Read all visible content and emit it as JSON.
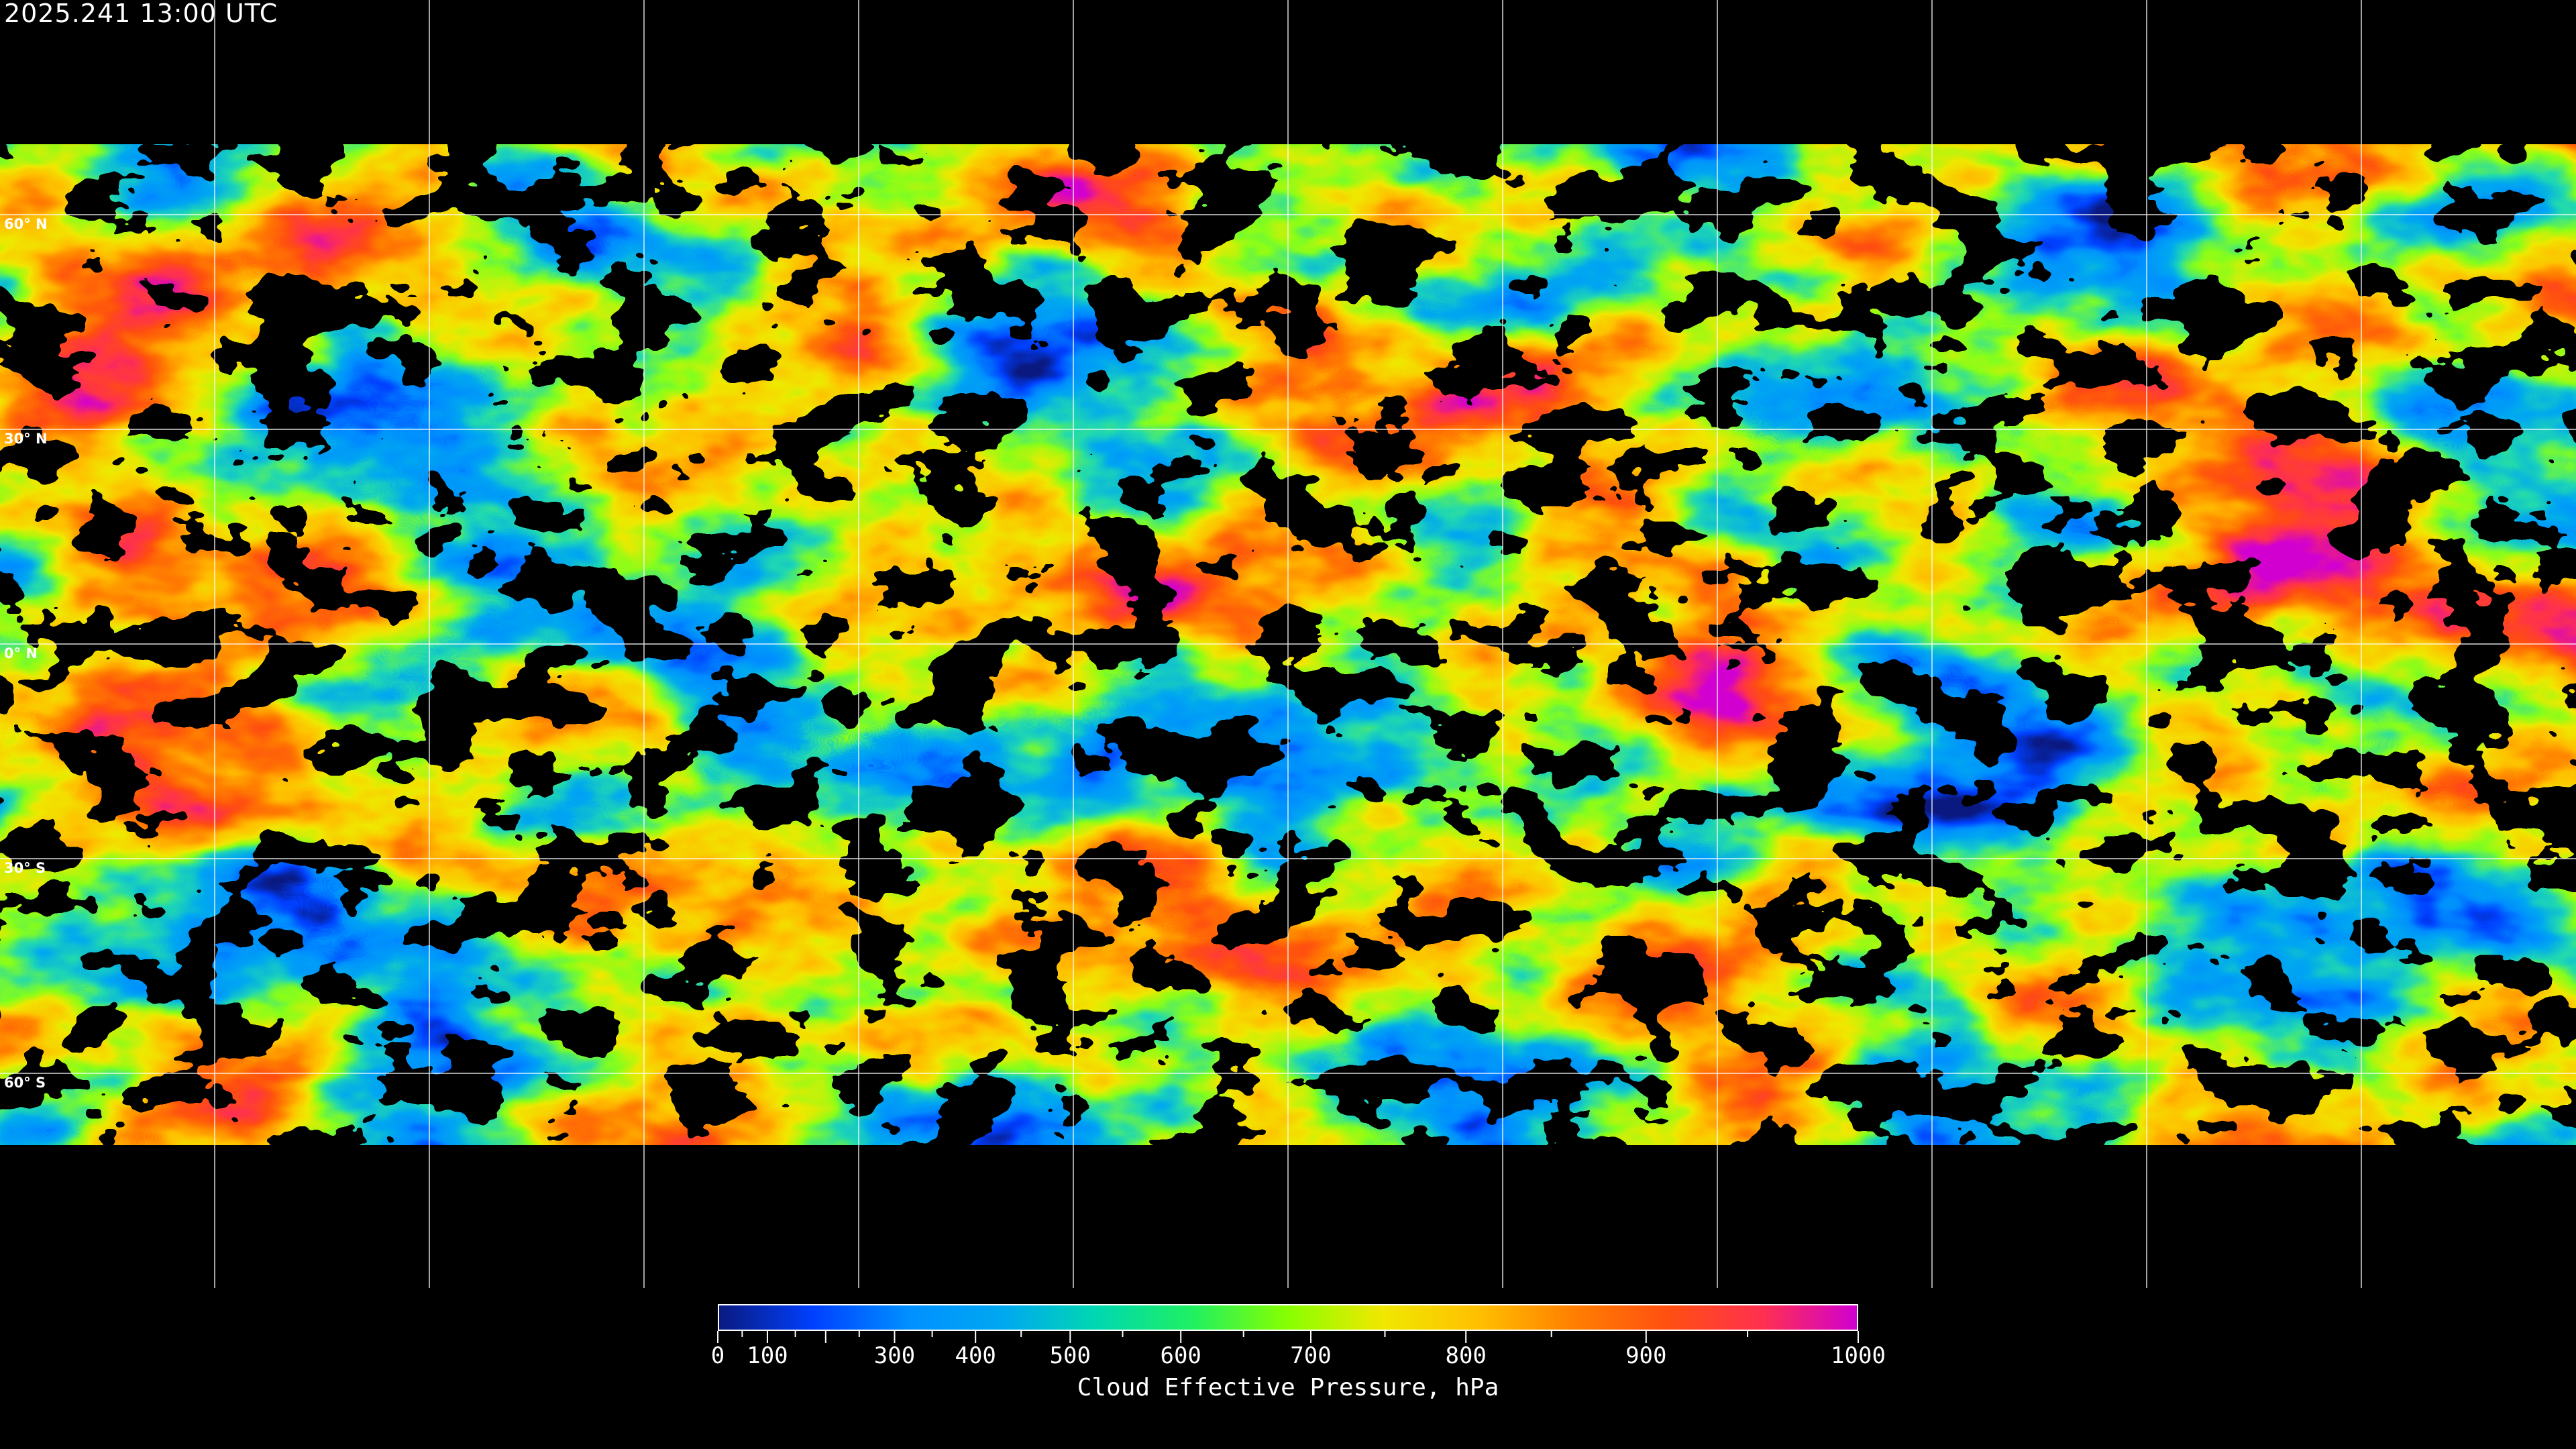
{
  "header": {
    "timestamp": "2025.241 13:00 UTC"
  },
  "map": {
    "projection": "equirectangular",
    "grid_spacing_deg": 30,
    "latitude_labels": [
      "60° N",
      "30° N",
      "0° N",
      "30° S",
      "60° S"
    ],
    "gridline_color": "#ffffff",
    "background_color": "#000000"
  },
  "colorbar": {
    "title": "Cloud Effective Pressure, hPa",
    "tick_labels": [
      "0",
      "100",
      "300",
      "400",
      "500",
      "600",
      "700",
      "800",
      "900",
      "1000"
    ],
    "minor_ticks": [
      50,
      150,
      200,
      250,
      350,
      450,
      550,
      650,
      750,
      850,
      950
    ],
    "range": [
      0,
      1000
    ],
    "colors": [
      "#0a1a80",
      "#0040ff",
      "#0090ff",
      "#00a8f0",
      "#00d8b0",
      "#20f060",
      "#88ff00",
      "#f0e800",
      "#ffc000",
      "#ff8000",
      "#ff5010",
      "#ff3050",
      "#d000d0"
    ]
  }
}
